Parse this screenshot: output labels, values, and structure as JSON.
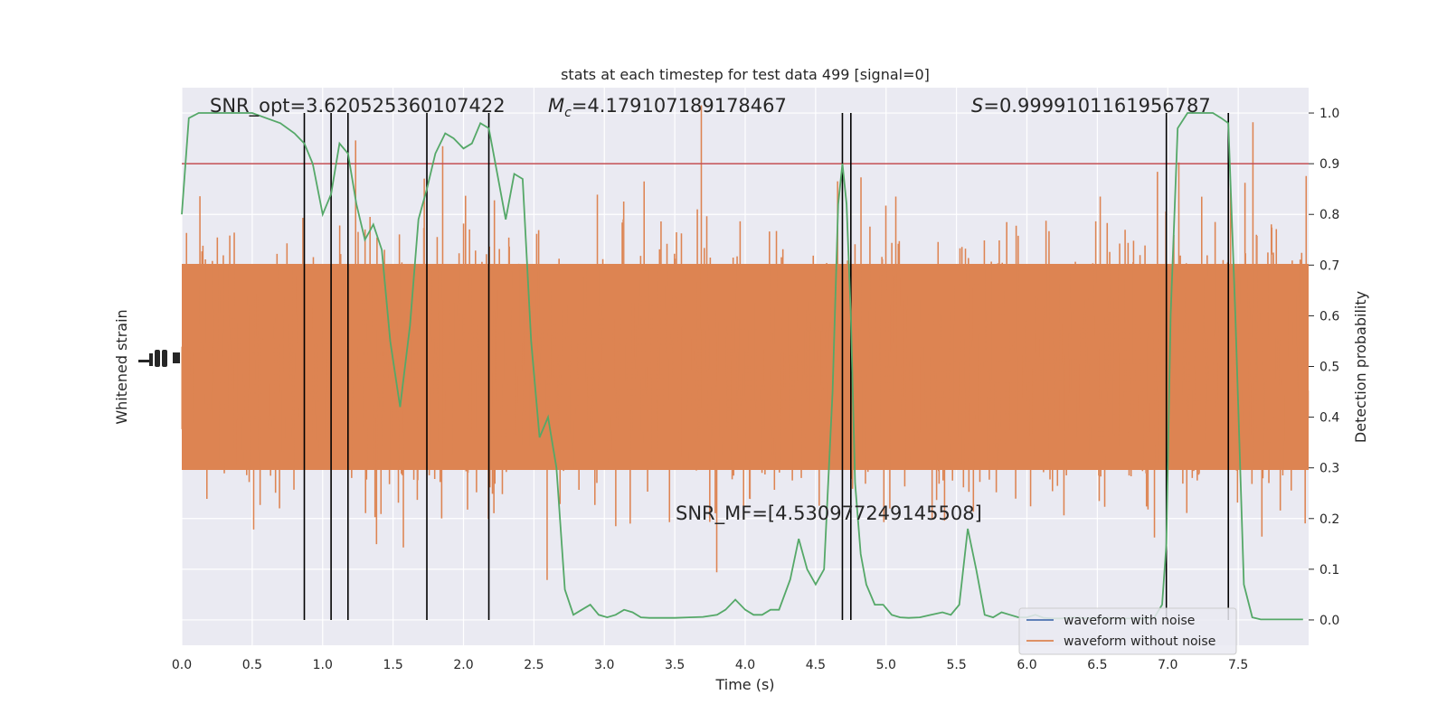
{
  "chart_data": {
    "type": "line",
    "title": "stats at each timestep for test data 499 [signal=0]",
    "xlabel": "Time (s)",
    "ylabel_left": "Whitened strain",
    "ylabel_right": "Detection probability",
    "xlim": [
      0,
      8
    ],
    "ylim_right": [
      -0.05,
      1.05
    ],
    "x_ticks": [
      "0.0",
      "0.5",
      "1.0",
      "1.5",
      "2.0",
      "2.5",
      "3.0",
      "3.5",
      "4.0",
      "4.5",
      "5.0",
      "5.5",
      "6.0",
      "6.5",
      "7.0",
      "7.5"
    ],
    "y_ticks_right": [
      "0.0",
      "0.1",
      "0.2",
      "0.3",
      "0.4",
      "0.5",
      "0.6",
      "0.7",
      "0.8",
      "0.9",
      "1.0"
    ],
    "grid": true,
    "threshold": 0.9,
    "annotations": {
      "snr_opt": "SNR_opt=3.620525360107422",
      "mc_symbol": "M",
      "mc_sub": "c",
      "mc_value": "=4.179107189178467",
      "s_symbol": "S",
      "s_value": "=0.9999101161956787",
      "snr_mf": "SNR_MF=[4.530977249145508]"
    },
    "vertical_lines": [
      0.87,
      1.06,
      1.18,
      1.74,
      2.18,
      4.69,
      4.75,
      6.99,
      7.43
    ],
    "series": [
      {
        "name": "waveform with noise",
        "color": "#4c72b0"
      },
      {
        "name": "waveform without noise",
        "color": "#dd8452"
      }
    ],
    "probability": {
      "color": "#55a868",
      "x": [
        0.0,
        0.05,
        0.12,
        0.2,
        0.3,
        0.4,
        0.5,
        0.6,
        0.7,
        0.8,
        0.87,
        0.93,
        1.0,
        1.06,
        1.12,
        1.18,
        1.24,
        1.3,
        1.36,
        1.42,
        1.48,
        1.55,
        1.62,
        1.68,
        1.74,
        1.8,
        1.87,
        1.93,
        2.0,
        2.06,
        2.12,
        2.18,
        2.24,
        2.3,
        2.36,
        2.42,
        2.48,
        2.54,
        2.6,
        2.66,
        2.72,
        2.78,
        2.84,
        2.9,
        2.96,
        3.02,
        3.08,
        3.14,
        3.2,
        3.26,
        3.32,
        3.4,
        3.5,
        3.6,
        3.7,
        3.8,
        3.86,
        3.93,
        4.0,
        4.06,
        4.12,
        4.18,
        4.24,
        4.32,
        4.38,
        4.44,
        4.5,
        4.56,
        4.62,
        4.66,
        4.69,
        4.72,
        4.75,
        4.78,
        4.82,
        4.86,
        4.92,
        4.98,
        5.04,
        5.1,
        5.16,
        5.24,
        5.32,
        5.4,
        5.46,
        5.52,
        5.58,
        5.64,
        5.7,
        5.76,
        5.82,
        5.88,
        5.94,
        6.0,
        6.06,
        6.12,
        6.18,
        6.24,
        6.3,
        6.36,
        6.42,
        6.5,
        6.58,
        6.66,
        6.74,
        6.82,
        6.9,
        6.96,
        6.99,
        7.02,
        7.07,
        7.14,
        7.2,
        7.26,
        7.32,
        7.38,
        7.43,
        7.48,
        7.54,
        7.6,
        7.66,
        7.72,
        7.8,
        7.88,
        7.96
      ],
      "y": [
        0.8,
        0.99,
        1.0,
        1.0,
        1.0,
        1.0,
        1.0,
        0.99,
        0.98,
        0.96,
        0.94,
        0.9,
        0.8,
        0.84,
        0.94,
        0.92,
        0.82,
        0.75,
        0.78,
        0.73,
        0.55,
        0.42,
        0.58,
        0.79,
        0.85,
        0.92,
        0.96,
        0.95,
        0.93,
        0.94,
        0.98,
        0.97,
        0.88,
        0.79,
        0.88,
        0.87,
        0.55,
        0.36,
        0.4,
        0.3,
        0.06,
        0.01,
        0.02,
        0.03,
        0.01,
        0.005,
        0.01,
        0.02,
        0.015,
        0.005,
        0.004,
        0.004,
        0.004,
        0.005,
        0.006,
        0.01,
        0.02,
        0.04,
        0.02,
        0.01,
        0.01,
        0.02,
        0.02,
        0.08,
        0.16,
        0.1,
        0.07,
        0.1,
        0.45,
        0.82,
        0.9,
        0.82,
        0.6,
        0.27,
        0.13,
        0.07,
        0.03,
        0.03,
        0.01,
        0.005,
        0.004,
        0.005,
        0.01,
        0.015,
        0.01,
        0.03,
        0.18,
        0.1,
        0.01,
        0.005,
        0.015,
        0.01,
        0.005,
        0.005,
        0.01,
        0.004,
        0.003,
        0.003,
        0.004,
        0.005,
        0.003,
        0.004,
        0.004,
        0.003,
        0.003,
        0.003,
        0.003,
        0.03,
        0.15,
        0.6,
        0.97,
        1.0,
        1.0,
        1.0,
        1.0,
        0.99,
        0.98,
        0.6,
        0.07,
        0.005,
        0.001,
        0.001,
        0.001,
        0.001,
        0.001
      ]
    },
    "legend_location": "lower right"
  }
}
